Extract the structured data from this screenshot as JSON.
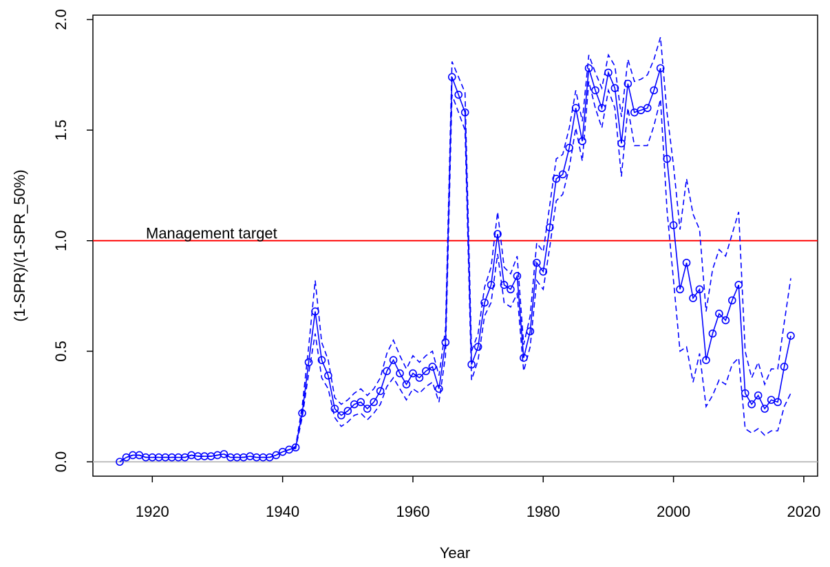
{
  "chart_data": {
    "type": "line",
    "x_label": "Year",
    "y_label": "(1-SPR)/(1-SPR_50%)",
    "annotation": "Management target",
    "x": [
      1915,
      1916,
      1917,
      1918,
      1919,
      1920,
      1921,
      1922,
      1923,
      1924,
      1925,
      1926,
      1927,
      1928,
      1929,
      1930,
      1931,
      1932,
      1933,
      1934,
      1935,
      1936,
      1937,
      1938,
      1939,
      1940,
      1941,
      1942,
      1943,
      1944,
      1945,
      1946,
      1947,
      1948,
      1949,
      1950,
      1951,
      1952,
      1953,
      1954,
      1955,
      1956,
      1957,
      1958,
      1959,
      1960,
      1961,
      1962,
      1963,
      1964,
      1965,
      1966,
      1967,
      1968,
      1969,
      1970,
      1971,
      1972,
      1973,
      1974,
      1975,
      1976,
      1977,
      1978,
      1979,
      1980,
      1981,
      1982,
      1983,
      1984,
      1985,
      1986,
      1987,
      1988,
      1989,
      1990,
      1991,
      1992,
      1993,
      1994,
      1995,
      1996,
      1997,
      1998,
      1999,
      2000,
      2001,
      2002,
      2003,
      2004,
      2005,
      2006,
      2007,
      2008,
      2009,
      2010,
      2011,
      2012,
      2013,
      2014,
      2015,
      2016,
      2017,
      2018
    ],
    "series": [
      {
        "color": "#0000ff",
        "style": "solid",
        "markers": true,
        "values": [
          0.0,
          0.02,
          0.03,
          0.03,
          0.02,
          0.02,
          0.02,
          0.02,
          0.02,
          0.02,
          0.02,
          0.03,
          0.025,
          0.025,
          0.025,
          0.03,
          0.035,
          0.02,
          0.02,
          0.02,
          0.025,
          0.02,
          0.02,
          0.02,
          0.03,
          0.045,
          0.055,
          0.065,
          0.22,
          0.45,
          0.68,
          0.46,
          0.39,
          0.24,
          0.21,
          0.23,
          0.26,
          0.27,
          0.24,
          0.27,
          0.32,
          0.41,
          0.46,
          0.4,
          0.35,
          0.4,
          0.38,
          0.41,
          0.43,
          0.33,
          0.54,
          1.74,
          1.66,
          1.58,
          0.44,
          0.52,
          0.72,
          0.8,
          1.03,
          0.8,
          0.78,
          0.84,
          0.47,
          0.59,
          0.9,
          0.86,
          1.06,
          1.28,
          1.3,
          1.42,
          1.6,
          1.45,
          1.78,
          1.68,
          1.6,
          1.76,
          1.69,
          1.44,
          1.71,
          1.58,
          1.59,
          1.6,
          1.68,
          1.78,
          1.37,
          1.07,
          0.78,
          0.9,
          0.74,
          0.78,
          0.46,
          0.58,
          0.67,
          0.64,
          0.73,
          0.8,
          0.31,
          0.26,
          0.3,
          0.24,
          0.28,
          0.27,
          0.43,
          0.57
        ]
      },
      {
        "color": "#0000ff",
        "style": "dashed",
        "markers": false,
        "values": [
          0.0,
          0.02,
          0.03,
          0.03,
          0.02,
          0.02,
          0.02,
          0.02,
          0.02,
          0.02,
          0.02,
          0.03,
          0.025,
          0.025,
          0.025,
          0.03,
          0.035,
          0.02,
          0.02,
          0.02,
          0.025,
          0.02,
          0.02,
          0.02,
          0.03,
          0.045,
          0.055,
          0.07,
          0.25,
          0.52,
          0.82,
          0.54,
          0.46,
          0.29,
          0.26,
          0.28,
          0.31,
          0.33,
          0.3,
          0.33,
          0.38,
          0.49,
          0.55,
          0.48,
          0.42,
          0.48,
          0.45,
          0.48,
          0.5,
          0.39,
          0.6,
          1.81,
          1.74,
          1.67,
          0.5,
          0.58,
          0.79,
          0.88,
          1.13,
          0.88,
          0.85,
          0.93,
          0.53,
          0.66,
          0.99,
          0.95,
          1.16,
          1.37,
          1.39,
          1.51,
          1.68,
          1.54,
          1.84,
          1.76,
          1.69,
          1.84,
          1.79,
          1.56,
          1.82,
          1.72,
          1.73,
          1.75,
          1.82,
          1.92,
          1.58,
          1.34,
          1.05,
          1.28,
          1.12,
          1.05,
          0.68,
          0.87,
          0.96,
          0.93,
          1.03,
          1.13,
          0.5,
          0.38,
          0.45,
          0.35,
          0.42,
          0.42,
          0.63,
          0.83
        ]
      },
      {
        "color": "#0000ff",
        "style": "dashed",
        "markers": false,
        "values": [
          0.0,
          0.02,
          0.03,
          0.03,
          0.02,
          0.02,
          0.02,
          0.02,
          0.02,
          0.02,
          0.02,
          0.03,
          0.025,
          0.025,
          0.025,
          0.03,
          0.035,
          0.02,
          0.02,
          0.02,
          0.025,
          0.02,
          0.02,
          0.02,
          0.03,
          0.045,
          0.055,
          0.06,
          0.2,
          0.4,
          0.58,
          0.38,
          0.33,
          0.2,
          0.16,
          0.18,
          0.21,
          0.22,
          0.19,
          0.22,
          0.26,
          0.34,
          0.38,
          0.33,
          0.28,
          0.33,
          0.31,
          0.34,
          0.36,
          0.27,
          0.48,
          1.66,
          1.58,
          1.5,
          0.37,
          0.46,
          0.66,
          0.72,
          0.94,
          0.72,
          0.7,
          0.76,
          0.41,
          0.52,
          0.82,
          0.78,
          0.97,
          1.18,
          1.21,
          1.33,
          1.51,
          1.36,
          1.72,
          1.6,
          1.51,
          1.68,
          1.6,
          1.29,
          1.6,
          1.43,
          1.43,
          1.43,
          1.52,
          1.64,
          1.14,
          0.82,
          0.5,
          0.52,
          0.36,
          0.49,
          0.25,
          0.3,
          0.37,
          0.35,
          0.44,
          0.47,
          0.15,
          0.13,
          0.15,
          0.12,
          0.14,
          0.14,
          0.25,
          0.31
        ]
      }
    ],
    "hlines": [
      {
        "value": 1,
        "color": "#ff0000"
      },
      {
        "value": 0,
        "color": "#bebebe"
      }
    ],
    "xlim": [
      1910.88,
      2022.12
    ],
    "ylim": [
      -0.065,
      2.02
    ],
    "xticks": [
      1920,
      1940,
      1960,
      1980,
      2000,
      2020
    ],
    "yticks": [
      {
        "value": 0,
        "label": "0.0"
      },
      {
        "value": 0.5,
        "label": "0.5"
      },
      {
        "value": 1,
        "label": "1.0"
      },
      {
        "value": 1.5,
        "label": "1.5"
      },
      {
        "value": 2,
        "label": "2.0"
      }
    ]
  }
}
